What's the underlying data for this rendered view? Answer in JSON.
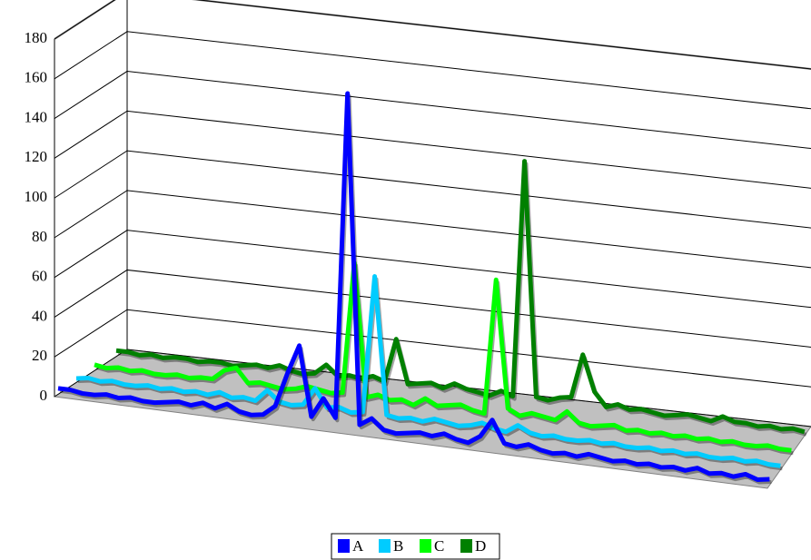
{
  "chart_data": {
    "type": "line3d",
    "ylim": [
      0,
      180
    ],
    "yticks": [
      0,
      20,
      40,
      60,
      80,
      100,
      120,
      140,
      160,
      180
    ],
    "grid": true,
    "floor_color": "#c0c0c0",
    "legend": "bottom",
    "series": [
      {
        "name": "A",
        "color": "#0000ff",
        "values": [
          3,
          3,
          2,
          2,
          3,
          2,
          3,
          2,
          2,
          3,
          4,
          3,
          5,
          3,
          6,
          3,
          2,
          3,
          8,
          25,
          40,
          5,
          15,
          6,
          170,
          4,
          8,
          3,
          2,
          3,
          4,
          3,
          5,
          3,
          2,
          6,
          15,
          4,
          3,
          5,
          3,
          2,
          3,
          2,
          4,
          3,
          2,
          3,
          2,
          3,
          2,
          3,
          2,
          4,
          2,
          3,
          2,
          4,
          2,
          3
        ]
      },
      {
        "name": "B",
        "color": "#00ccff",
        "values": [
          2,
          3,
          2,
          3,
          2,
          2,
          3,
          2,
          3,
          2,
          3,
          2,
          4,
          2,
          3,
          2,
          8,
          3,
          2,
          3,
          12,
          3,
          4,
          2,
          3,
          72,
          3,
          2,
          3,
          2,
          4,
          3,
          2,
          3,
          5,
          3,
          2,
          6,
          3,
          2,
          3,
          2,
          2,
          3,
          2,
          3,
          2,
          2,
          3,
          2,
          3,
          2,
          3,
          2,
          2,
          3,
          2,
          3,
          2,
          2
        ]
      },
      {
        "name": "C",
        "color": "#00ff00",
        "values": [
          3,
          2,
          3,
          2,
          3,
          2,
          2,
          3,
          2,
          3,
          3,
          8,
          10,
          3,
          4,
          3,
          2,
          3,
          5,
          4,
          3,
          4,
          70,
          3,
          5,
          3,
          4,
          2,
          6,
          3,
          4,
          5,
          3,
          2,
          70,
          6,
          3,
          5,
          4,
          3,
          8,
          3,
          2,
          3,
          4,
          2,
          3,
          2,
          3,
          2,
          3,
          2,
          3,
          2,
          3,
          2,
          2,
          3,
          2,
          2
        ]
      },
      {
        "name": "D",
        "color": "#008000",
        "values": [
          3,
          3,
          2,
          3,
          2,
          3,
          3,
          2,
          3,
          3,
          2,
          3,
          4,
          3,
          5,
          3,
          2,
          3,
          8,
          3,
          4,
          3,
          5,
          3,
          25,
          3,
          4,
          5,
          3,
          6,
          4,
          3,
          2,
          5,
          3,
          122,
          4,
          3,
          5,
          6,
          28,
          10,
          3,
          5,
          3,
          4,
          3,
          2,
          3,
          4,
          3,
          2,
          5,
          3,
          3,
          2,
          3,
          2,
          3,
          2
        ]
      }
    ]
  }
}
